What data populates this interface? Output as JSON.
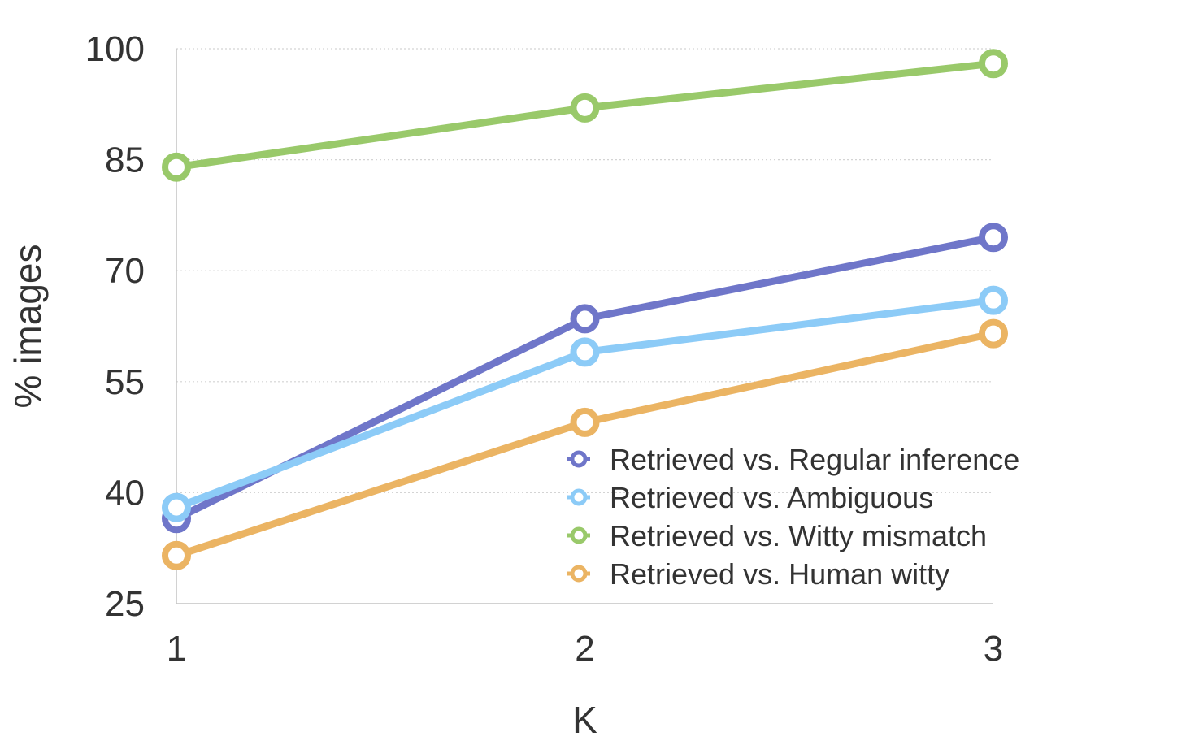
{
  "chart_data": {
    "type": "line",
    "title": "",
    "xlabel": "K",
    "ylabel": "% images",
    "x": [
      1,
      2,
      3
    ],
    "x_tick_labels": [
      "1",
      "2",
      "3"
    ],
    "ylim": [
      25,
      100
    ],
    "y_ticks": [
      25,
      40,
      55,
      70,
      85,
      100
    ],
    "y_tick_labels": [
      "25",
      "40",
      "55",
      "70",
      "85",
      "100"
    ],
    "grid": "horizontal dotted",
    "legend_position": "bottom-right",
    "series": [
      {
        "name": "Retrieved vs. Regular inference",
        "color": "#6f76c9",
        "values": [
          36.5,
          63.5,
          74.5
        ]
      },
      {
        "name": "Retrieved vs. Ambiguous",
        "color": "#8ccbf7",
        "values": [
          38.0,
          59.0,
          66.0
        ]
      },
      {
        "name": "Retrieved vs. Witty mismatch",
        "color": "#99c96a",
        "values": [
          84.0,
          92.0,
          98.0
        ]
      },
      {
        "name": "Retrieved vs. Human witty",
        "color": "#ebb463",
        "values": [
          31.5,
          49.5,
          61.5
        ]
      }
    ]
  }
}
